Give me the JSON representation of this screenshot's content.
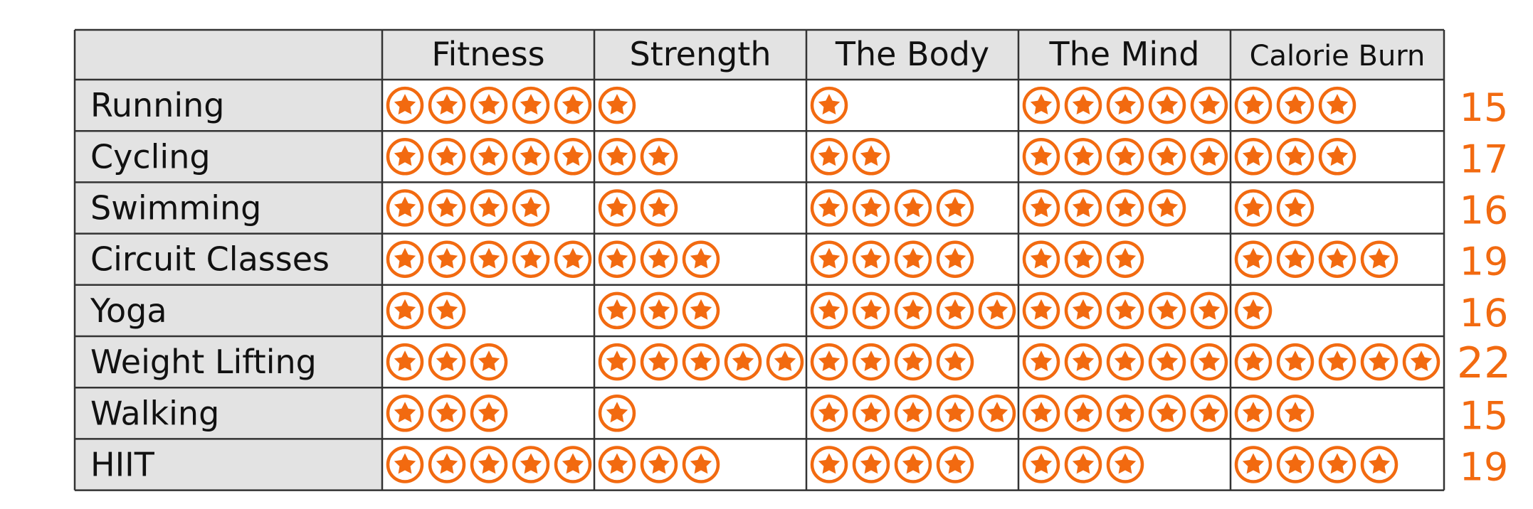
{
  "chart_data": {
    "type": "table",
    "columns": [
      "Fitness",
      "Strength",
      "The Body",
      "The Mind",
      "Calorie Burn"
    ],
    "rows": [
      {
        "label": "Running",
        "ratings": [
          5,
          1,
          1,
          5,
          3
        ],
        "total": "15"
      },
      {
        "label": "Cycling",
        "ratings": [
          5,
          2,
          2,
          5,
          3
        ],
        "total": "17"
      },
      {
        "label": "Swimming",
        "ratings": [
          4,
          2,
          4,
          4,
          2
        ],
        "total": "16"
      },
      {
        "label": "Circuit Classes",
        "ratings": [
          5,
          3,
          4,
          3,
          4
        ],
        "total": "19"
      },
      {
        "label": "Yoga",
        "ratings": [
          2,
          3,
          5,
          5,
          1
        ],
        "total": "16"
      },
      {
        "label": "Weight Lifting",
        "ratings": [
          3,
          5,
          4,
          5,
          5
        ],
        "total": "22"
      },
      {
        "label": "Walking",
        "ratings": [
          3,
          1,
          5,
          5,
          2
        ],
        "total": "15"
      },
      {
        "label": "HIIT",
        "ratings": [
          5,
          3,
          4,
          3,
          4
        ],
        "total": "19"
      }
    ],
    "rating_max": 5,
    "rating_icon": "star-in-circle-icon",
    "colors": {
      "star": "#f26a10",
      "header_bg": "#e3e3e3",
      "label_bg": "#e3e3e3",
      "cell_bg": "#ffffff",
      "border": "#333333",
      "total": "#f26a10"
    }
  }
}
